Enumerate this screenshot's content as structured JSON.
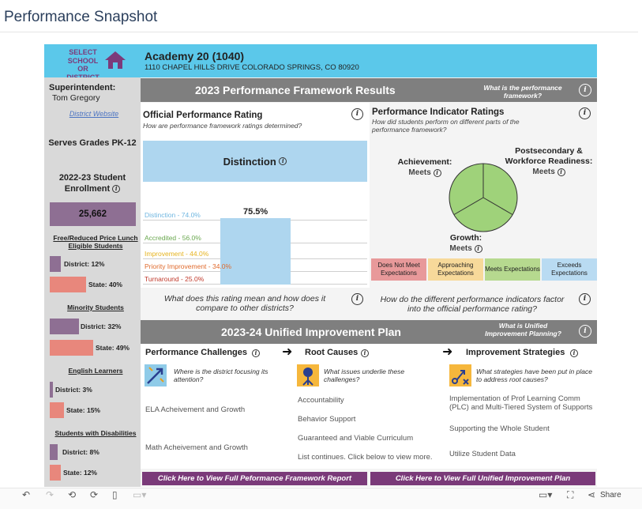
{
  "page": {
    "title": "Performance Snapshot"
  },
  "header": {
    "select_label": "SELECT SCHOOL OR DISTRICT",
    "district_name": "Academy 20 (1040)",
    "address": "1110 CHAPEL HILLS DRIVE COLORADO SPRINGS, CO 80920"
  },
  "sidebar": {
    "superintendent_label": "Superintendent:",
    "superintendent_name": "Tom Gregory",
    "website_link": "District Website",
    "grades": "Serves Grades PK-12",
    "enrollment_label": "2022-23 Student Enrollment",
    "enrollment_value": "25,662",
    "sections": [
      {
        "title": "Free/Reduced Price Lunch Eligible Students",
        "district": "District: 12%",
        "state": "State: 40%",
        "district_pct": 12,
        "state_pct": 40
      },
      {
        "title": "Minority Students",
        "district": "District: 32%",
        "state": "State: 49%",
        "district_pct": 32,
        "state_pct": 49
      },
      {
        "title": "English Learners",
        "district": "District: 3%",
        "state": "State: 15%",
        "district_pct": 3,
        "state_pct": 15
      },
      {
        "title": "Students with Disabilities",
        "district": "District: 8%",
        "state": "State: 12%",
        "district_pct": 8,
        "state_pct": 12
      }
    ]
  },
  "framework": {
    "band_title": "2023 Performance Framework Results",
    "band_question": "What is the performance framework?",
    "official_title": "Official Performance Rating",
    "official_sub": "How are performance framework ratings determined?",
    "rating": "Distinction",
    "score_label": "75.5%",
    "score": 75.5,
    "thresholds": [
      {
        "label": "Distinction - 74.0%",
        "value": 74.0,
        "color": "#6fb6e0"
      },
      {
        "label": "Accredited - 56.0%",
        "value": 56.0,
        "color": "#6aa84f"
      },
      {
        "label": "Improvement - 44.0%",
        "value": 44.0,
        "color": "#e6b31e"
      },
      {
        "label": "Priority Improvement - 34.0%",
        "value": 34.0,
        "color": "#e06a2c"
      },
      {
        "label": "Turnaround - 25.0%",
        "value": 25.0,
        "color": "#c0392b"
      }
    ],
    "rating_question": "What does this rating mean and how does it compare to other districts?",
    "indicator_title": "Performance Indicator Ratings",
    "indicator_sub": "How did students perform on different parts of the performance framework?",
    "indicators": {
      "achievement": {
        "label": "Achievement:",
        "value": "Meets"
      },
      "postsecondary": {
        "label": "Postsecondary & Workforce Readiness:",
        "value": "Meets"
      },
      "growth": {
        "label": "Growth:",
        "value": "Meets"
      }
    },
    "legend": [
      {
        "label": "Does Not Meet Expectations",
        "color": "#e8999a"
      },
      {
        "label": "Approaching Expectations",
        "color": "#f7d99a"
      },
      {
        "label": "Meets Expectations",
        "color": "#b6d98f"
      },
      {
        "label": "Exceeds Expectations",
        "color": "#b9dbf2"
      }
    ],
    "indicator_question": "How do the different performance indicators factor into the official performance rating?"
  },
  "uip": {
    "band_title": "2023-24 Unified Improvement Plan",
    "band_question": "What is Unified Improvement Planning?",
    "challenges": {
      "title": "Performance Challenges",
      "question": "Where is the district focusing its attention?",
      "items": [
        "ELA Acheivement and Growth",
        "Math Acheivement and Growth"
      ]
    },
    "root_causes": {
      "title": "Root Causes",
      "question": "What issues underlie these challenges?",
      "items": [
        "Accountability",
        "Behavior Support",
        "Guaranteed and Viable Curriculum",
        "List continues. Click below to view more."
      ]
    },
    "strategies": {
      "title": "Improvement Strategies",
      "question": "What strategies have been put in place to address root causes?",
      "items": [
        "Implementation of Prof Learning Comm (PLC) and Multi-Tiered System of Supports",
        "Supporting the Whole Student",
        "Utilize Student Data"
      ]
    }
  },
  "buttons": {
    "framework_report": "Click Here to View Full Peformance Framework Report",
    "uip_report": "Click Here to View Full Unified Improvement Plan"
  },
  "toolbar": {
    "share_label": "Share"
  }
}
